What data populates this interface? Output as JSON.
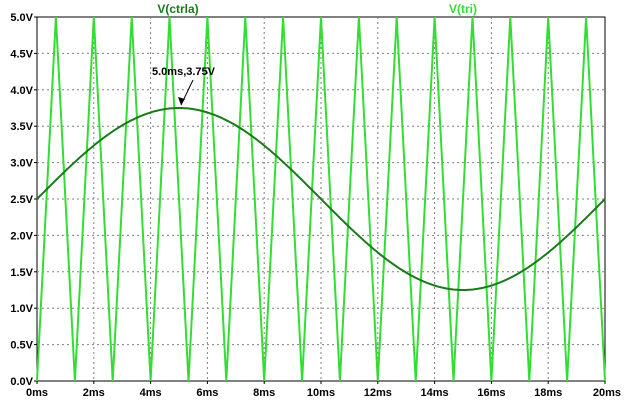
{
  "chart_data": {
    "type": "line",
    "xlabel": "",
    "ylabel": "",
    "xlim": [
      0,
      20
    ],
    "ylim": [
      0,
      5
    ],
    "x_unit": "ms",
    "y_unit": "V",
    "grid": true,
    "x_ticks": [
      "0ms",
      "2ms",
      "4ms",
      "6ms",
      "8ms",
      "10ms",
      "12ms",
      "14ms",
      "16ms",
      "18ms",
      "20ms"
    ],
    "y_ticks": [
      "0.0V",
      "0.5V",
      "1.0V",
      "1.5V",
      "2.0V",
      "2.5V",
      "3.0V",
      "3.5V",
      "4.0V",
      "4.5V",
      "5.0V"
    ],
    "series": [
      {
        "name": "V(ctrla)",
        "color": "#1a7a1a",
        "description_points": {
          "x": [
            0,
            1,
            2,
            3,
            4,
            5,
            6,
            7,
            8,
            9,
            10,
            11,
            12,
            13,
            14,
            15,
            16,
            17,
            18,
            19,
            20
          ],
          "y": [
            2.5,
            2.89,
            3.23,
            3.51,
            3.68,
            3.75,
            3.68,
            3.51,
            3.23,
            2.89,
            2.5,
            2.11,
            1.77,
            1.49,
            1.32,
            1.25,
            1.32,
            1.49,
            1.77,
            2.11,
            2.5
          ]
        }
      },
      {
        "name": "V(tri)",
        "color": "#33dd33",
        "description_points": {
          "x": [
            0,
            0.667,
            1.333,
            2.0,
            2.667,
            3.333,
            4.0,
            4.667,
            5.333,
            6.0,
            6.667,
            7.333,
            8.0,
            8.667,
            9.333,
            10.0,
            10.667,
            11.333,
            12.0,
            12.667,
            13.333,
            14.0,
            14.667,
            15.333,
            16.0,
            16.667,
            17.333,
            18.0,
            18.667,
            19.333,
            20.0
          ],
          "y": [
            0,
            5,
            0,
            5,
            0,
            5,
            0,
            5,
            0,
            5,
            0,
            5,
            0,
            5,
            0,
            5,
            0,
            5,
            0,
            5,
            0,
            5,
            0,
            5,
            0,
            5,
            0,
            5,
            0,
            5,
            0
          ]
        }
      }
    ],
    "annotations": [
      {
        "text": "5.0ms,3.75V",
        "x": 5.0,
        "y": 3.75
      }
    ]
  }
}
